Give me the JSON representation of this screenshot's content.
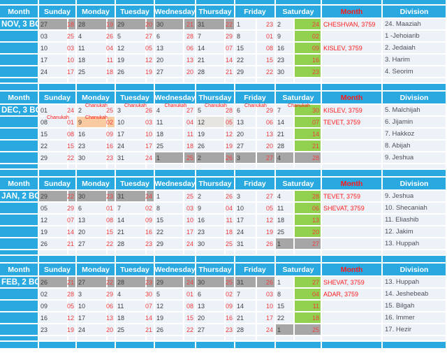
{
  "colors": {
    "blue": "#29A9E0",
    "light_row": "#EDF1F8",
    "gray_cell": "#A6A6A6",
    "green_sabbath": "#92D050",
    "peach_chanukah": "#FACBA0",
    "lightgray_cell": "#E6E5E2",
    "gregorian_text": "#3E3E3E",
    "hebrew_text": "#F03E3E",
    "red_strong": "#FF1A1A"
  },
  "header": {
    "month_col": "Month",
    "days": [
      "Sunday",
      "Monday",
      "Tuesday",
      "Wednesday",
      "Thursday",
      "Friday",
      "Saturday"
    ],
    "hebrew_month_col": "Month",
    "division_col": "Division"
  },
  "chanukah_label": "Chanukah",
  "sections": [
    {
      "month_label": "NOV, 3 BC",
      "rows": [
        {
          "days": [
            {
              "g": "27",
              "h": "18",
              "s": "gray"
            },
            {
              "g": "28",
              "h": "19",
              "s": "gray"
            },
            {
              "g": "29",
              "h": "20",
              "s": "gray"
            },
            {
              "g": "30",
              "h": "21",
              "s": "gray"
            },
            {
              "g": "31",
              "h": "22",
              "s": "gray"
            },
            {
              "g": "1",
              "h": "23"
            },
            {
              "g": "2",
              "h": "24",
              "s": "green"
            }
          ],
          "hebrew_month": "CHESHVAN, 3759",
          "division": "24. Maaziah"
        },
        {
          "days": [
            {
              "g": "03",
              "h": "25"
            },
            {
              "g": "4",
              "h": "26"
            },
            {
              "g": "5",
              "h": "27"
            },
            {
              "g": "6",
              "h": "28"
            },
            {
              "g": "7",
              "h": "29"
            },
            {
              "g": "8",
              "h": "01"
            },
            {
              "g": "9",
              "h": "02",
              "s": "green"
            }
          ],
          "hebrew_month": "",
          "division": "1 -Jehoiarib"
        },
        {
          "days": [
            {
              "g": "10",
              "h": "03"
            },
            {
              "g": "11",
              "h": "04"
            },
            {
              "g": "12",
              "h": "05"
            },
            {
              "g": "13",
              "h": "06"
            },
            {
              "g": "14",
              "h": "07"
            },
            {
              "g": "15",
              "h": "08"
            },
            {
              "g": "16",
              "h": "09",
              "s": "green"
            }
          ],
          "hebrew_month": "KISLEV, 3759",
          "division": "2. Jedaiah"
        },
        {
          "days": [
            {
              "g": "17",
              "h": "10"
            },
            {
              "g": "18",
              "h": "11"
            },
            {
              "g": "19",
              "h": "12"
            },
            {
              "g": "20",
              "h": "13"
            },
            {
              "g": "21",
              "h": "14"
            },
            {
              "g": "22",
              "h": "15"
            },
            {
              "g": "23",
              "h": "16",
              "s": "green"
            }
          ],
          "hebrew_month": "",
          "division": "3. Harim"
        },
        {
          "days": [
            {
              "g": "24",
              "h": "17"
            },
            {
              "g": "25",
              "h": "18"
            },
            {
              "g": "26",
              "h": "19"
            },
            {
              "g": "27",
              "h": "20"
            },
            {
              "g": "28",
              "h": "21"
            },
            {
              "g": "29",
              "h": "22"
            },
            {
              "g": "30",
              "h": "23",
              "s": "green"
            }
          ],
          "hebrew_month": "",
          "division": "4. Seorim"
        }
      ]
    },
    {
      "month_label": "DEC, 3 BC",
      "rows": [
        {
          "days": [
            {
              "g": "01",
              "h": "24"
            },
            {
              "g": "2",
              "h": "25",
              "ch": true
            },
            {
              "g": "3",
              "h": "26",
              "ch": true
            },
            {
              "g": "4",
              "h": "27",
              "ch": true
            },
            {
              "g": "5",
              "h": "28",
              "ch": true
            },
            {
              "g": "6",
              "h": "29",
              "ch": true
            },
            {
              "g": "7",
              "h": "30",
              "s": "green",
              "ch": true
            }
          ],
          "hebrew_month": "KISLEV, 3759",
          "division": "5. Malchijah"
        },
        {
          "days": [
            {
              "g": "08",
              "h": "01",
              "ch": true
            },
            {
              "g": "9",
              "h": "02",
              "s": "peach",
              "ch": true
            },
            {
              "g": "10",
              "h": "03"
            },
            {
              "g": "11",
              "h": "04"
            },
            {
              "g": "12",
              "h": "05",
              "s": "lgray"
            },
            {
              "g": "13",
              "h": "06"
            },
            {
              "g": "14",
              "h": "07",
              "s": "green"
            }
          ],
          "hebrew_month": "TEVET, 3759",
          "division": "6. Jijamin"
        },
        {
          "days": [
            {
              "g": "15",
              "h": "08"
            },
            {
              "g": "16",
              "h": "09"
            },
            {
              "g": "17",
              "h": "10"
            },
            {
              "g": "18",
              "h": "11"
            },
            {
              "g": "19",
              "h": "12"
            },
            {
              "g": "20",
              "h": "13"
            },
            {
              "g": "21",
              "h": "14",
              "s": "green"
            }
          ],
          "hebrew_month": "",
          "division": "7. Hakkoz"
        },
        {
          "days": [
            {
              "g": "22",
              "h": "15"
            },
            {
              "g": "23",
              "h": "16"
            },
            {
              "g": "24",
              "h": "17"
            },
            {
              "g": "25",
              "h": "18"
            },
            {
              "g": "26",
              "h": "19"
            },
            {
              "g": "27",
              "h": "20"
            },
            {
              "g": "28",
              "h": "21",
              "s": "green"
            }
          ],
          "hebrew_month": "",
          "division": "8. Abijah"
        },
        {
          "days": [
            {
              "g": "29",
              "h": "22"
            },
            {
              "g": "30",
              "h": "23"
            },
            {
              "g": "31",
              "h": "24"
            },
            {
              "g": "1",
              "h": "25",
              "s": "gray"
            },
            {
              "g": "2",
              "h": "26",
              "s": "gray"
            },
            {
              "g": "3",
              "h": "27",
              "s": "gray"
            },
            {
              "g": "4",
              "h": "28",
              "s": "gray"
            }
          ],
          "hebrew_month": "",
          "division": "9. Jeshua"
        }
      ]
    },
    {
      "month_label": "JAN, 2 BC",
      "rows": [
        {
          "days": [
            {
              "g": "29",
              "h": "22",
              "s": "gray"
            },
            {
              "g": "30",
              "h": "23",
              "s": "gray"
            },
            {
              "g": "31",
              "h": "24",
              "s": "gray"
            },
            {
              "g": "1",
              "h": "25"
            },
            {
              "g": "2",
              "h": "26"
            },
            {
              "g": "3",
              "h": "27"
            },
            {
              "g": "4",
              "h": "28",
              "s": "green"
            }
          ],
          "hebrew_month": "TEVET, 3759",
          "division": "9. Jeshua"
        },
        {
          "days": [
            {
              "g": "05",
              "h": "29"
            },
            {
              "g": "6",
              "h": "01"
            },
            {
              "g": "7",
              "h": "02"
            },
            {
              "g": "8",
              "h": "03"
            },
            {
              "g": "9",
              "h": "04"
            },
            {
              "g": "10",
              "h": "05"
            },
            {
              "g": "11",
              "h": "06",
              "s": "green"
            }
          ],
          "hebrew_month": "SHEVAT, 3759",
          "division": "10. Shecaniah"
        },
        {
          "days": [
            {
              "g": "12",
              "h": "07"
            },
            {
              "g": "13",
              "h": "08"
            },
            {
              "g": "14",
              "h": "09"
            },
            {
              "g": "15",
              "h": "10"
            },
            {
              "g": "16",
              "h": "11"
            },
            {
              "g": "17",
              "h": "12"
            },
            {
              "g": "18",
              "h": "13",
              "s": "green"
            }
          ],
          "hebrew_month": "",
          "division": "11. Eliashib"
        },
        {
          "days": [
            {
              "g": "19",
              "h": "14"
            },
            {
              "g": "20",
              "h": "15"
            },
            {
              "g": "21",
              "h": "16"
            },
            {
              "g": "22",
              "h": "17"
            },
            {
              "g": "23",
              "h": "18"
            },
            {
              "g": "24",
              "h": "19"
            },
            {
              "g": "25",
              "h": "20",
              "s": "green"
            }
          ],
          "hebrew_month": "",
          "division": "12. Jakim"
        },
        {
          "days": [
            {
              "g": "26",
              "h": "21"
            },
            {
              "g": "27",
              "h": "22"
            },
            {
              "g": "28",
              "h": "23"
            },
            {
              "g": "29",
              "h": "24"
            },
            {
              "g": "30",
              "h": "25"
            },
            {
              "g": "31",
              "h": "26"
            },
            {
              "g": "1",
              "h": "27",
              "s": "gray"
            }
          ],
          "hebrew_month": "",
          "division": "13. Huppah"
        }
      ]
    },
    {
      "month_label": "FEB, 2 BC",
      "rows": [
        {
          "days": [
            {
              "g": "26",
              "h": "21",
              "s": "gray"
            },
            {
              "g": "27",
              "h": "22",
              "s": "gray"
            },
            {
              "g": "28",
              "h": "23",
              "s": "gray"
            },
            {
              "g": "29",
              "h": "24",
              "s": "gray"
            },
            {
              "g": "30",
              "h": "25",
              "s": "gray"
            },
            {
              "g": "31",
              "h": "26",
              "s": "gray"
            },
            {
              "g": "1",
              "h": "27",
              "s": "green"
            }
          ],
          "hebrew_month": "SHEVAT, 3759",
          "division": "13. Huppah"
        },
        {
          "days": [
            {
              "g": "02",
              "h": "28"
            },
            {
              "g": "3",
              "h": "29"
            },
            {
              "g": "4",
              "h": "30"
            },
            {
              "g": "5",
              "h": "01"
            },
            {
              "g": "6",
              "h": "02"
            },
            {
              "g": "7",
              "h": "03"
            },
            {
              "g": "8",
              "h": "04",
              "s": "green"
            }
          ],
          "hebrew_month": "ADAR, 3759",
          "division": "14. Jeshebeab"
        },
        {
          "days": [
            {
              "g": "09",
              "h": "05"
            },
            {
              "g": "10",
              "h": "06"
            },
            {
              "g": "11",
              "h": "07"
            },
            {
              "g": "12",
              "h": "08"
            },
            {
              "g": "13",
              "h": "09"
            },
            {
              "g": "14",
              "h": "10"
            },
            {
              "g": "15",
              "h": "11",
              "s": "green"
            }
          ],
          "hebrew_month": "",
          "division": "15. Bilgah"
        },
        {
          "days": [
            {
              "g": "16",
              "h": "12"
            },
            {
              "g": "17",
              "h": "13"
            },
            {
              "g": "18",
              "h": "14"
            },
            {
              "g": "19",
              "h": "15"
            },
            {
              "g": "20",
              "h": "16"
            },
            {
              "g": "21",
              "h": "17"
            },
            {
              "g": "22",
              "h": "18",
              "s": "green"
            }
          ],
          "hebrew_month": "",
          "division": "16. Immer"
        },
        {
          "days": [
            {
              "g": "23",
              "h": "19"
            },
            {
              "g": "24",
              "h": "20"
            },
            {
              "g": "25",
              "h": "21"
            },
            {
              "g": "26",
              "h": "22"
            },
            {
              "g": "27",
              "h": "23"
            },
            {
              "g": "28",
              "h": "24"
            },
            {
              "g": "1",
              "h": "25",
              "s": "gray"
            }
          ],
          "hebrew_month": "",
          "division": "17. Hezir"
        }
      ]
    }
  ]
}
